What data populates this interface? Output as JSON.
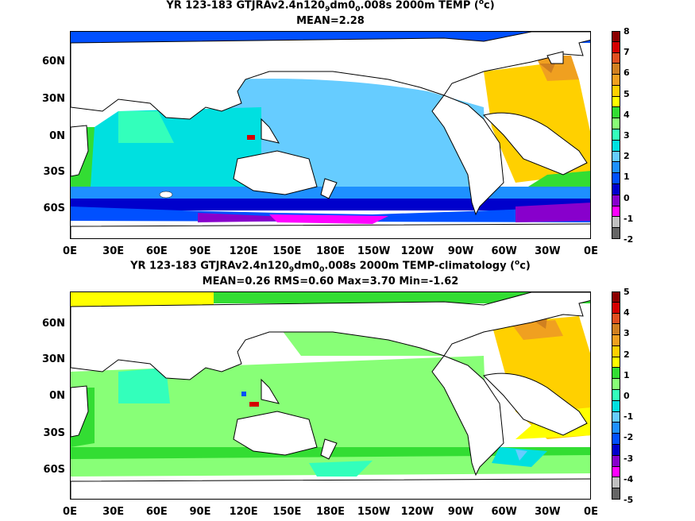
{
  "panels": [
    {
      "title_prefix": "YR 123-183 GTJRAv2.4n120",
      "title_sub1": "9",
      "title_mid": "dm0",
      "title_sub2": "0",
      "title_suffix": ".008s 2000m TEMP (",
      "title_unit_sup": "o",
      "title_unit": "c)",
      "stats": "MEAN=2.28",
      "lat_labels": [
        "60N",
        "30N",
        "0N",
        "30S",
        "60S"
      ],
      "lon_labels": [
        "0E",
        "30E",
        "60E",
        "90E",
        "120E",
        "150E",
        "180E",
        "150W",
        "120W",
        "90W",
        "60W",
        "30W",
        "0E"
      ],
      "colorbar": {
        "ticks": [
          "8",
          "7",
          "6",
          "5",
          "4",
          "3",
          "2",
          "1",
          "0",
          "-1",
          "-2"
        ],
        "colors": [
          "#8b0000",
          "#d40000",
          "#e05020",
          "#d08020",
          "#f0a020",
          "#ffd000",
          "#ffff00",
          "#33dd33",
          "#88ff77",
          "#33ffbb",
          "#00e0e0",
          "#66ccff",
          "#1e90ff",
          "#0050ff",
          "#0000cc",
          "#8800cc",
          "#ff00ff",
          "#c0c0c0",
          "#666666"
        ]
      }
    },
    {
      "title_prefix": "YR 123-183 GTJRAv2.4n120",
      "title_sub1": "9",
      "title_mid": "dm0",
      "title_sub2": "0",
      "title_suffix": ".008s 2000m TEMP-climatology (",
      "title_unit_sup": "o",
      "title_unit": "c)",
      "stats": "MEAN=0.26   RMS=0.60   Max=3.70   Min=-1.62",
      "lat_labels": [
        "60N",
        "30N",
        "0N",
        "30S",
        "60S"
      ],
      "lon_labels": [
        "0E",
        "30E",
        "60E",
        "90E",
        "120E",
        "150E",
        "180E",
        "150W",
        "120W",
        "90W",
        "60W",
        "30W",
        "0E"
      ],
      "colorbar": {
        "ticks": [
          "5",
          "4",
          "3",
          "2",
          "1",
          "0",
          "-1",
          "-2",
          "-3",
          "-4",
          "-5"
        ],
        "colors": [
          "#8b0000",
          "#d40000",
          "#e05020",
          "#d08020",
          "#f0a020",
          "#ffd000",
          "#ffff00",
          "#33dd33",
          "#88ff77",
          "#33ffbb",
          "#00e0e0",
          "#66ccff",
          "#1e90ff",
          "#0050ff",
          "#0000cc",
          "#8800cc",
          "#ff00ff",
          "#c0c0c0",
          "#666666"
        ]
      }
    }
  ]
}
